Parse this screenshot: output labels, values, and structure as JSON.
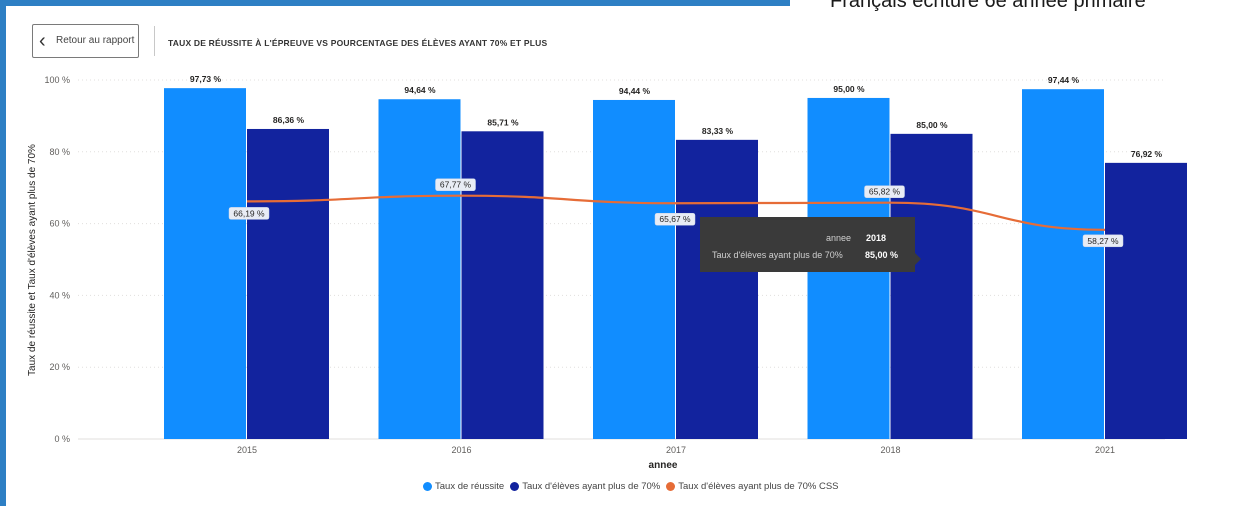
{
  "page": {
    "heading": "Français écriture 6e année primaire",
    "back_label": "Retour au rapport",
    "back_icon": "chevron-left-icon"
  },
  "tooltip": {
    "key1": "annee",
    "val1": "2018",
    "key2": "Taux d'élèves ayant plus de 70%",
    "val2": "85,00 %"
  },
  "chart_data": {
    "type": "bar",
    "title": "TAUX DE RÉUSSITE À L'ÉPREUVE VS POURCENTAGE DES ÉLÈVES AYANT 70% ET PLUS",
    "xlabel": "annee",
    "ylabel": "Taux de réussite et Taux d'élèves ayant plus de 70%",
    "ylim": [
      0,
      100
    ],
    "yticks": [
      0,
      20,
      40,
      60,
      80,
      100
    ],
    "ytick_labels": [
      "0 %",
      "20 %",
      "40 %",
      "60 %",
      "80 %",
      "100 %"
    ],
    "grid": true,
    "legend_position": "bottom",
    "categories": [
      "2015",
      "2016",
      "2017",
      "2018",
      "2021"
    ],
    "series": [
      {
        "name": "Taux de réussite",
        "kind": "bar",
        "color": "#118dff",
        "values": [
          97.73,
          94.64,
          94.44,
          95.0,
          97.44
        ],
        "labels": [
          "97,73 %",
          "94,64 %",
          "94,44 %",
          "95,00 %",
          "97,44 %"
        ]
      },
      {
        "name": "Taux d'élèves ayant plus de 70%",
        "kind": "bar",
        "color": "#12239e",
        "values": [
          86.36,
          85.71,
          83.33,
          85.0,
          76.92
        ],
        "labels": [
          "86,36 %",
          "85,71 %",
          "83,33 %",
          "85,00 %",
          "76,92 %"
        ]
      },
      {
        "name": "Taux d'élèves ayant plus de 70% CSS",
        "kind": "line",
        "color": "#e66c37",
        "values": [
          66.19,
          67.77,
          65.67,
          65.82,
          58.27
        ],
        "labels": [
          "66,19 %",
          "67,77 %",
          "65,67 %",
          "65,82 %",
          "58,27 %"
        ]
      }
    ]
  }
}
